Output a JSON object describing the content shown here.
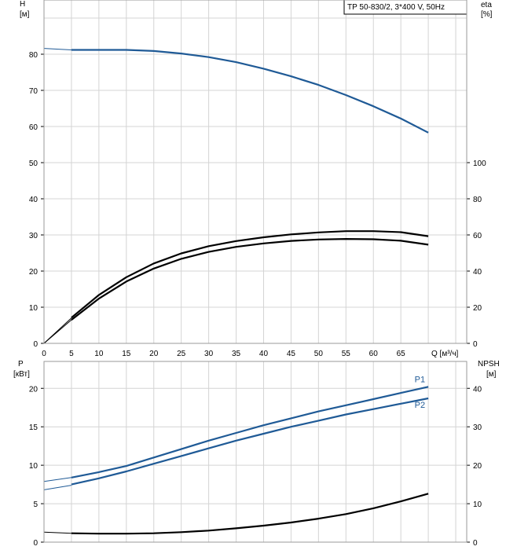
{
  "model_label": "TP 50-830/2, 3*400 V, 50Hz",
  "chart_data": [
    {
      "type": "line",
      "name": "head-efficiency",
      "xlabel": "Q [м³/ч]",
      "xlim": [
        0,
        77
      ],
      "x_ticks": [
        0,
        5,
        10,
        15,
        20,
        25,
        30,
        35,
        40,
        45,
        50,
        55,
        60,
        65
      ],
      "ylabel_left": [
        "H",
        "[м]"
      ],
      "ylim_left": [
        0,
        95
      ],
      "y_ticks_left": [
        0,
        10,
        20,
        30,
        40,
        50,
        60,
        70,
        80
      ],
      "ylabel_right": [
        "eta",
        "[%]"
      ],
      "ylim_right": [
        0,
        190
      ],
      "y_ticks_right": [
        0,
        20,
        40,
        60,
        80,
        100
      ],
      "grid": true,
      "series": [
        {
          "color": "#1f5a96",
          "axis": "left",
          "extension": {
            "x": [
              0,
              5
            ],
            "y": [
              81.6,
              81.2
            ]
          },
          "x": [
            5,
            10,
            15,
            20,
            25,
            30,
            35,
            40,
            45,
            50,
            55,
            60,
            65,
            70
          ],
          "y": [
            81.2,
            81.2,
            81.2,
            80.9,
            80.2,
            79.2,
            77.8,
            76.0,
            73.9,
            71.5,
            68.7,
            65.6,
            62.2,
            58.3
          ]
        },
        {
          "color": "#000000",
          "axis": "right",
          "extension": {
            "x": [
              0,
              5
            ],
            "y": [
              0,
              14
            ]
          },
          "x": [
            5,
            10,
            15,
            20,
            25,
            30,
            35,
            40,
            45,
            50,
            55,
            60,
            65,
            70
          ],
          "y": [
            14.2,
            26.8,
            36.6,
            44.2,
            49.8,
            53.8,
            56.6,
            58.7,
            60.3,
            61.4,
            62.1,
            62.1,
            61.5,
            59.3
          ]
        },
        {
          "color": "#000000",
          "axis": "right",
          "extension": {
            "x": [
              0,
              5
            ],
            "y": [
              0,
              13
            ]
          },
          "x": [
            5,
            10,
            15,
            20,
            25,
            30,
            35,
            40,
            45,
            50,
            55,
            60,
            65,
            70
          ],
          "y": [
            13.0,
            24.8,
            34.2,
            41.4,
            46.8,
            50.6,
            53.4,
            55.3,
            56.7,
            57.5,
            57.8,
            57.6,
            56.8,
            54.6
          ]
        }
      ]
    },
    {
      "type": "line",
      "name": "power-npsh",
      "ylabel_left": [
        "P",
        "[кВт]"
      ],
      "ylim_left": [
        0,
        23.5
      ],
      "y_ticks_left": [
        0,
        5,
        10,
        15,
        20
      ],
      "ylabel_right": [
        "NPSH",
        "[м]"
      ],
      "ylim_right": [
        0,
        47
      ],
      "y_ticks_right": [
        0,
        10,
        20,
        30,
        40
      ],
      "xlim": [
        0,
        77
      ],
      "grid": true,
      "series": [
        {
          "name": "P1",
          "color": "#1f5a96",
          "axis": "left",
          "extension": {
            "x": [
              0,
              5
            ],
            "y": [
              7.9,
              8.4
            ]
          },
          "x": [
            5,
            10,
            15,
            20,
            25,
            30,
            35,
            40,
            45,
            50,
            55,
            60,
            65,
            70
          ],
          "y": [
            8.4,
            9.1,
            9.9,
            11.0,
            12.1,
            13.2,
            14.2,
            15.2,
            16.1,
            17.0,
            17.8,
            18.6,
            19.4,
            20.2
          ]
        },
        {
          "name": "P2",
          "color": "#1f5a96",
          "axis": "left",
          "extension": {
            "x": [
              0,
              5
            ],
            "y": [
              6.8,
              7.4
            ]
          },
          "x": [
            5,
            10,
            15,
            20,
            25,
            30,
            35,
            40,
            45,
            50,
            55,
            60,
            65,
            70
          ],
          "y": [
            7.5,
            8.3,
            9.2,
            10.2,
            11.2,
            12.2,
            13.2,
            14.1,
            15.0,
            15.8,
            16.6,
            17.3,
            18.0,
            18.7
          ]
        },
        {
          "color": "#000000",
          "axis": "right",
          "extension": {
            "x": [
              0,
              5
            ],
            "y": [
              2.6,
              2.3
            ]
          },
          "x": [
            5,
            10,
            15,
            20,
            25,
            30,
            35,
            40,
            45,
            50,
            55,
            60,
            65,
            70
          ],
          "y": [
            2.3,
            2.2,
            2.2,
            2.3,
            2.6,
            3.0,
            3.6,
            4.3,
            5.1,
            6.1,
            7.3,
            8.8,
            10.6,
            12.6
          ]
        }
      ]
    }
  ]
}
